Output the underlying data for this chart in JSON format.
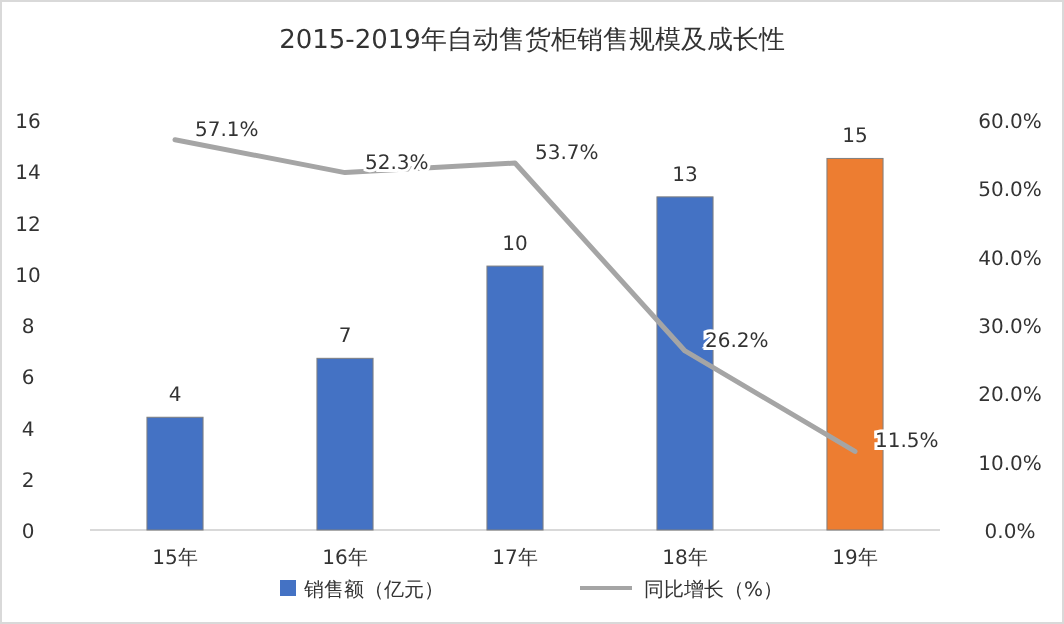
{
  "chart_data": {
    "type": "bar",
    "title": "2015-2019年自动售货柜销售规模及成长性",
    "categories": [
      "15年",
      "16年",
      "17年",
      "18年",
      "19年"
    ],
    "series": [
      {
        "name": "销售额（亿元）",
        "colors": [
          "#4472c4",
          "#4472c4",
          "#4472c4",
          "#4472c4",
          "#ed7d31"
        ],
        "values": [
          4.4,
          6.7,
          10.3,
          13.0,
          14.5
        ],
        "value_labels": [
          "4",
          "7",
          "10",
          "13",
          "15"
        ]
      },
      {
        "name": "同比增长（%）",
        "type": "line",
        "axis": "y2",
        "color": "#a5a5a5",
        "values": [
          57.1,
          52.3,
          53.7,
          26.2,
          11.5
        ],
        "value_labels": [
          "57.1%",
          "52.3%",
          "53.7%",
          "26.2%",
          "11.5%"
        ]
      }
    ],
    "ylim": [
      0,
      16
    ],
    "yticks": [
      0,
      2,
      4,
      6,
      8,
      10,
      12,
      14,
      16
    ],
    "y2lim": [
      0,
      60
    ],
    "y2ticks": [
      {
        "value": 0,
        "label": "0.0%"
      },
      {
        "value": 10,
        "label": "10.0%"
      },
      {
        "value": 20,
        "label": "20.0%"
      },
      {
        "value": 30,
        "label": "30.0%"
      },
      {
        "value": 40,
        "label": "40.0%"
      },
      {
        "value": 50,
        "label": "50.0%"
      },
      {
        "value": 60,
        "label": "60.0%"
      }
    ],
    "legend": "bottom"
  }
}
